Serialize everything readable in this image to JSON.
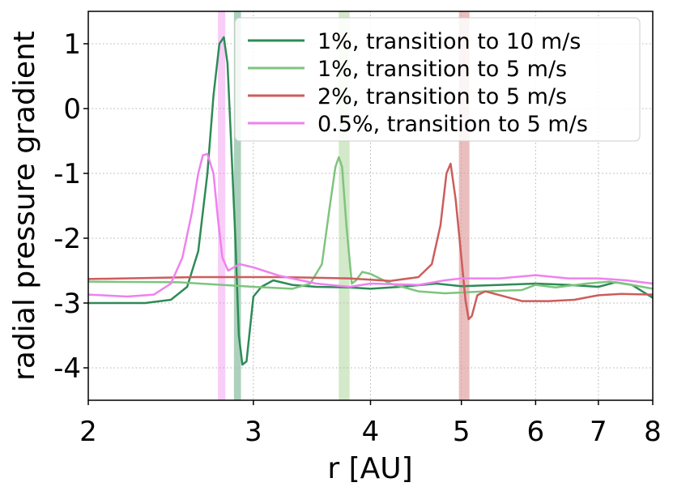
{
  "chart_data": {
    "type": "line",
    "xlabel": "r [AU]",
    "ylabel": "radial pressure gradient",
    "x_scale": "log",
    "xlim": [
      2,
      8
    ],
    "ylim": [
      -4.5,
      1.5
    ],
    "x_ticks": [
      {
        "value": 2,
        "label": "2"
      },
      {
        "value": 3,
        "label": "3"
      },
      {
        "value": 4,
        "label": "4"
      },
      {
        "value": 5,
        "label": "5"
      },
      {
        "value": 6,
        "label": "6"
      },
      {
        "value": 7,
        "label": "7"
      },
      {
        "value": 8,
        "label": "8"
      }
    ],
    "y_ticks": [
      {
        "value": 1,
        "label": "1"
      },
      {
        "value": 0,
        "label": "0"
      },
      {
        "value": -1,
        "label": "-1"
      },
      {
        "value": -2,
        "label": "-2"
      },
      {
        "value": -3,
        "label": "-3"
      },
      {
        "value": -4,
        "label": "-4"
      }
    ],
    "grid": true,
    "legend_position": "top-right",
    "bands": [
      {
        "x0": 2.75,
        "x1": 2.8,
        "color": "#ee82ee"
      },
      {
        "x0": 2.86,
        "x1": 2.91,
        "color": "#2e8b57"
      },
      {
        "x0": 3.7,
        "x1": 3.8,
        "color": "#90c97a"
      },
      {
        "x0": 4.97,
        "x1": 5.1,
        "color": "#cd5c5c"
      }
    ],
    "series": [
      {
        "name": "1%, transition to 10 m/s",
        "color": "#2e8b57",
        "points": [
          [
            2.0,
            -3.0
          ],
          [
            2.3,
            -3.0
          ],
          [
            2.45,
            -2.95
          ],
          [
            2.55,
            -2.75
          ],
          [
            2.62,
            -2.2
          ],
          [
            2.68,
            -1.0
          ],
          [
            2.72,
            0.2
          ],
          [
            2.76,
            1.0
          ],
          [
            2.79,
            1.1
          ],
          [
            2.815,
            0.7
          ],
          [
            2.84,
            -0.5
          ],
          [
            2.87,
            -2.0
          ],
          [
            2.895,
            -3.5
          ],
          [
            2.92,
            -3.95
          ],
          [
            2.95,
            -3.9
          ],
          [
            3.0,
            -2.9
          ],
          [
            3.06,
            -2.75
          ],
          [
            3.15,
            -2.65
          ],
          [
            3.3,
            -2.72
          ],
          [
            3.5,
            -2.75
          ],
          [
            3.8,
            -2.76
          ],
          [
            4.0,
            -2.78
          ],
          [
            4.3,
            -2.75
          ],
          [
            4.7,
            -2.7
          ],
          [
            5.0,
            -2.74
          ],
          [
            5.5,
            -2.72
          ],
          [
            6.0,
            -2.7
          ],
          [
            6.5,
            -2.72
          ],
          [
            7.0,
            -2.75
          ],
          [
            7.3,
            -2.68
          ],
          [
            7.6,
            -2.72
          ],
          [
            8.0,
            -2.92
          ]
        ]
      },
      {
        "name": "1%, transition to 5 m/s",
        "color": "#7ec47e",
        "points": [
          [
            2.0,
            -2.67
          ],
          [
            2.5,
            -2.68
          ],
          [
            3.0,
            -2.75
          ],
          [
            3.3,
            -2.78
          ],
          [
            3.45,
            -2.7
          ],
          [
            3.55,
            -2.4
          ],
          [
            3.62,
            -1.5
          ],
          [
            3.67,
            -0.9
          ],
          [
            3.7,
            -0.75
          ],
          [
            3.73,
            -0.9
          ],
          [
            3.77,
            -1.8
          ],
          [
            3.82,
            -2.7
          ],
          [
            3.86,
            -2.65
          ],
          [
            3.92,
            -2.52
          ],
          [
            4.0,
            -2.55
          ],
          [
            4.2,
            -2.7
          ],
          [
            4.5,
            -2.82
          ],
          [
            4.8,
            -2.85
          ],
          [
            5.3,
            -2.82
          ],
          [
            5.8,
            -2.8
          ],
          [
            6.0,
            -2.72
          ],
          [
            6.3,
            -2.76
          ],
          [
            6.8,
            -2.7
          ],
          [
            7.2,
            -2.67
          ],
          [
            7.6,
            -2.72
          ],
          [
            8.0,
            -2.78
          ]
        ]
      },
      {
        "name": "2%, transition to 5 m/s",
        "color": "#cd5c5c",
        "points": [
          [
            2.0,
            -2.63
          ],
          [
            2.6,
            -2.6
          ],
          [
            3.2,
            -2.6
          ],
          [
            3.8,
            -2.62
          ],
          [
            4.2,
            -2.66
          ],
          [
            4.5,
            -2.6
          ],
          [
            4.65,
            -2.4
          ],
          [
            4.75,
            -1.8
          ],
          [
            4.82,
            -1.0
          ],
          [
            4.87,
            -0.85
          ],
          [
            4.93,
            -1.4
          ],
          [
            5.0,
            -2.3
          ],
          [
            5.05,
            -2.95
          ],
          [
            5.09,
            -3.25
          ],
          [
            5.13,
            -3.2
          ],
          [
            5.2,
            -2.88
          ],
          [
            5.3,
            -2.82
          ],
          [
            5.5,
            -2.88
          ],
          [
            5.8,
            -2.97
          ],
          [
            6.2,
            -2.97
          ],
          [
            6.6,
            -2.95
          ],
          [
            7.0,
            -2.88
          ],
          [
            7.4,
            -2.86
          ],
          [
            8.0,
            -2.87
          ]
        ]
      },
      {
        "name": "0.5%, transition to 5 m/s",
        "color": "#ee82ee",
        "points": [
          [
            2.0,
            -2.87
          ],
          [
            2.2,
            -2.9
          ],
          [
            2.35,
            -2.87
          ],
          [
            2.45,
            -2.7
          ],
          [
            2.52,
            -2.3
          ],
          [
            2.58,
            -1.6
          ],
          [
            2.62,
            -1.0
          ],
          [
            2.65,
            -0.72
          ],
          [
            2.68,
            -0.7
          ],
          [
            2.72,
            -1.0
          ],
          [
            2.75,
            -1.7
          ],
          [
            2.78,
            -2.3
          ],
          [
            2.82,
            -2.5
          ],
          [
            2.9,
            -2.4
          ],
          [
            3.0,
            -2.45
          ],
          [
            3.2,
            -2.58
          ],
          [
            3.5,
            -2.7
          ],
          [
            3.8,
            -2.75
          ],
          [
            4.0,
            -2.7
          ],
          [
            4.5,
            -2.72
          ],
          [
            4.8,
            -2.65
          ],
          [
            5.0,
            -2.62
          ],
          [
            5.5,
            -2.62
          ],
          [
            6.0,
            -2.57
          ],
          [
            6.5,
            -2.62
          ],
          [
            7.0,
            -2.62
          ],
          [
            7.5,
            -2.65
          ],
          [
            8.0,
            -2.7
          ]
        ]
      }
    ]
  }
}
